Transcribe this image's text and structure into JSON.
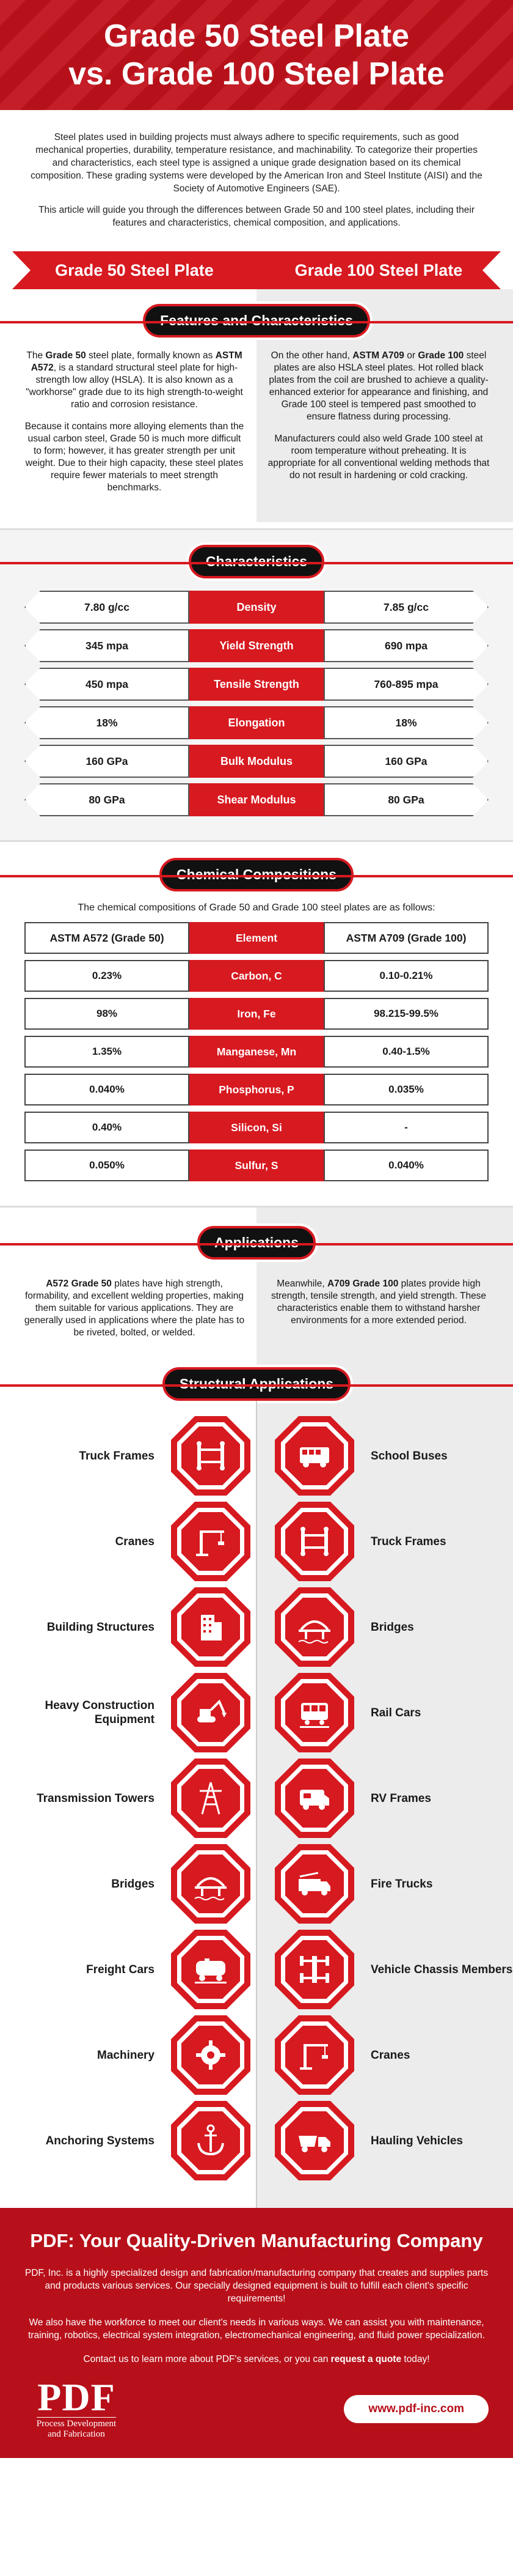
{
  "header": {
    "title_line1": "Grade 50 Steel Plate",
    "title_line2": "vs. Grade 100 Steel Plate"
  },
  "intro": {
    "p1": "Steel plates used in building projects must always adhere to specific requirements, such as good mechanical properties, durability, temperature resistance, and machinability. To categorize their properties and characteristics, each steel type is assigned a unique grade designation based on its chemical composition. These grading systems were developed by the American Iron and Steel Institute (AISI) and the Society of Automotive Engineers (SAE).",
    "p2": "This article will guide you through the differences between Grade 50 and 100 steel plates, including their features and characteristics, chemical composition, and applications."
  },
  "banner": {
    "left": "Grade 50 Steel Plate",
    "right": "Grade 100 Steel Plate"
  },
  "features": {
    "title": "Features and Characteristics",
    "left_p1_a": "The ",
    "left_p1_b": "Grade 50",
    "left_p1_c": " steel plate, formally known as ",
    "left_p1_d": "ASTM A572",
    "left_p1_e": ", is a standard structural steel plate for high-strength low alloy (HSLA). It is also known as a \"workhorse\" grade due to its high strength-to-weight ratio and corrosion resistance.",
    "left_p2": "Because it contains more alloying elements than the usual carbon steel, Grade 50 is much more difficult to form; however, it has greater strength per unit weight. Due to their high capacity, these steel plates require fewer materials to meet strength benchmarks.",
    "right_p1_a": "On the other hand, ",
    "right_p1_b": "ASTM A709",
    "right_p1_c": " or ",
    "right_p1_d": "Grade 100",
    "right_p1_e": " steel plates are also HSLA steel plates. Hot rolled black plates from the coil are brushed to achieve a quality-enhanced exterior for appearance and finishing, and Grade 100 steel is tempered past smoothed to ensure flatness during processing.",
    "right_p2": "Manufacturers could also weld Grade 100 steel at room temperature without preheating. It is appropriate for all conventional welding methods that do not result in hardening or cold cracking."
  },
  "characteristics": {
    "title": "Characteristics",
    "rows": [
      {
        "left": "7.80 g/cc",
        "mid": "Density",
        "right": "7.85 g/cc"
      },
      {
        "left": "345 mpa",
        "mid": "Yield Strength",
        "right": "690 mpa"
      },
      {
        "left": "450 mpa",
        "mid": "Tensile Strength",
        "right": "760-895 mpa"
      },
      {
        "left": "18%",
        "mid": "Elongation",
        "right": "18%"
      },
      {
        "left": "160 GPa",
        "mid": "Bulk Modulus",
        "right": "160 GPa"
      },
      {
        "left": "80 GPa",
        "mid": "Shear Modulus",
        "right": "80 GPa"
      }
    ]
  },
  "chemical": {
    "title": "Chemical Compositions",
    "intro": "The chemical compositions of Grade 50 and Grade 100 steel plates are as follows:",
    "head": {
      "left": "ASTM A572 (Grade 50)",
      "mid": "Element",
      "right": "ASTM A709 (Grade 100)"
    },
    "rows": [
      {
        "left": "0.23%",
        "mid": "Carbon, C",
        "right": "0.10-0.21%"
      },
      {
        "left": "98%",
        "mid": "Iron, Fe",
        "right": "98.215-99.5%"
      },
      {
        "left": "1.35%",
        "mid": "Manganese, Mn",
        "right": "0.40-1.5%"
      },
      {
        "left": "0.040%",
        "mid": "Phosphorus, P",
        "right": "0.035%"
      },
      {
        "left": "0.40%",
        "mid": "Silicon, Si",
        "right": "-"
      },
      {
        "left": "0.050%",
        "mid": "Sulfur, S",
        "right": "0.040%"
      }
    ]
  },
  "applications": {
    "title": "Applications",
    "left_a": "A572 Grade 50",
    "left_b": " plates have high strength, formability, and excellent welding properties, making them suitable for various applications. They are generally used in applications where the plate has to be riveted, bolted, or welded.",
    "right_a": "Meanwhile, ",
    "right_b": "A709 Grade 100",
    "right_c": " plates provide high strength, tensile strength, and yield strength. These characteristics enable them to withstand harsher environments for a more extended period."
  },
  "structural": {
    "title": "Structural Applications",
    "rows": [
      {
        "left": "Truck Frames",
        "left_icon": "truck-frame-icon",
        "right": "School Buses",
        "right_icon": "school-bus-icon"
      },
      {
        "left": "Cranes",
        "left_icon": "crane-icon",
        "right": "Truck Frames",
        "right_icon": "truck-frame-icon"
      },
      {
        "left": "Building Structures",
        "left_icon": "building-icon",
        "right": "Bridges",
        "right_icon": "bridge-icon"
      },
      {
        "left": "Heavy Construction Equipment",
        "left_icon": "excavator-icon",
        "right": "Rail Cars",
        "right_icon": "rail-car-icon"
      },
      {
        "left": "Transmission Towers",
        "left_icon": "tower-icon",
        "right": "RV Frames",
        "right_icon": "rv-icon"
      },
      {
        "left": "Bridges",
        "left_icon": "bridge-icon",
        "right": "Fire Trucks",
        "right_icon": "fire-truck-icon"
      },
      {
        "left": "Freight Cars",
        "left_icon": "freight-car-icon",
        "right": "Vehicle Chassis Members",
        "right_icon": "chassis-icon"
      },
      {
        "left": "Machinery",
        "left_icon": "gear-icon",
        "right": "Cranes",
        "right_icon": "crane-icon"
      },
      {
        "left": "Anchoring Systems",
        "left_icon": "anchor-icon",
        "right": "Hauling Vehicles",
        "right_icon": "hauling-icon"
      }
    ]
  },
  "footer": {
    "title": "PDF: Your Quality-Driven Manufacturing Company",
    "p1": "PDF, Inc. is a highly specialized design and fabrication/manufacturing company that creates and supplies parts and products various services. Our specially designed equipment is built to fulfill each client's specific requirements!",
    "p2": "We also have the workforce to meet our client's needs in various ways. We can assist you with maintenance, training, robotics, electrical system integration, electromechanical engineering, and fluid power specialization.",
    "p3_a": "Contact us to learn more about PDF's services, or you can ",
    "p3_b": "request a quote",
    "p3_c": " today!",
    "logo_main": "PDF",
    "logo_sub_1": "Process Development",
    "logo_sub_2": "and Fabrication",
    "url": "www.pdf-inc.com"
  },
  "colors": {
    "accent": "#d71920",
    "dark": "#111111",
    "footer": "#b7101a"
  }
}
